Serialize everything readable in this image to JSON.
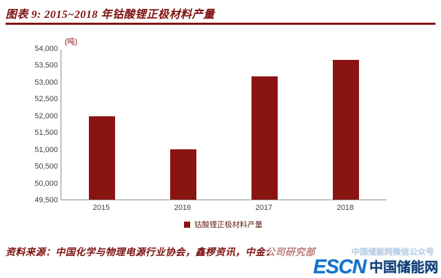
{
  "header": {
    "title": "图表 9: 2015~2018 年钴酸锂正极材料产量"
  },
  "chart_data": {
    "type": "bar",
    "title": "图表 9: 2015~2018 年钴酸锂正极材料产量",
    "unit_label": "(吨)",
    "categories": [
      "2015",
      "2016",
      "2017",
      "2018"
    ],
    "values": [
      52000,
      51000,
      53200,
      53700
    ],
    "ylim": [
      49500,
      54000
    ],
    "ytick_step": 500,
    "yticks_display": [
      "54,000",
      "53,500",
      "53,000",
      "52,500",
      "52,000",
      "51,500",
      "51,000",
      "50,500",
      "50,000",
      "49,500"
    ],
    "legend": "钴酸锂正极材料产量",
    "legend_position": "bottom",
    "bar_color": "#8a1412",
    "grid": false,
    "xlabel": "",
    "ylabel": ""
  },
  "footer": {
    "source": "资料来源：中国化学与物理电源行业协会，鑫椤资讯，中金公司研究部"
  },
  "watermark": {
    "ghost_text": "中国储能网微信公众号",
    "escn": "ESCN",
    "site_name": "中国储能网"
  }
}
